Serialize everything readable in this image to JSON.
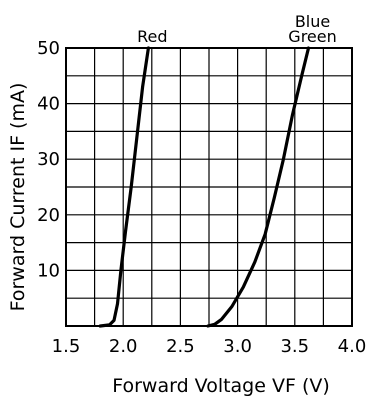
{
  "chart_data": {
    "type": "line",
    "xlabel": "Forward Voltage VF (V)",
    "ylabel": "Forward Current IF (mA)",
    "xlim": [
      1.5,
      4.0
    ],
    "ylim": [
      0,
      50
    ],
    "x_ticks": [
      "1.5",
      "2.0",
      "2.5",
      "3.0",
      "3.5",
      "4.0"
    ],
    "y_ticks": [
      "10",
      "20",
      "30",
      "40",
      "50"
    ],
    "grid": true,
    "series": [
      {
        "name": "Red",
        "label_lines": [
          "Red"
        ],
        "color": "#000000",
        "points": [
          [
            1.8,
            0.0
          ],
          [
            1.88,
            0.2
          ],
          [
            1.92,
            1.0
          ],
          [
            1.95,
            4.0
          ],
          [
            1.98,
            10.0
          ],
          [
            2.02,
            17.0
          ],
          [
            2.07,
            25.0
          ],
          [
            2.12,
            34.0
          ],
          [
            2.17,
            43.0
          ],
          [
            2.22,
            50.0
          ]
        ]
      },
      {
        "name": "Blue Green",
        "label_lines": [
          "Blue",
          "Green"
        ],
        "color": "#000000",
        "points": [
          [
            2.74,
            0.0
          ],
          [
            2.8,
            0.3
          ],
          [
            2.86,
            1.2
          ],
          [
            2.95,
            3.5
          ],
          [
            3.05,
            7.0
          ],
          [
            3.15,
            11.5
          ],
          [
            3.24,
            16.5
          ],
          [
            3.32,
            23.0
          ],
          [
            3.4,
            30.0
          ],
          [
            3.48,
            38.0
          ],
          [
            3.56,
            45.0
          ],
          [
            3.62,
            50.0
          ]
        ]
      }
    ]
  }
}
